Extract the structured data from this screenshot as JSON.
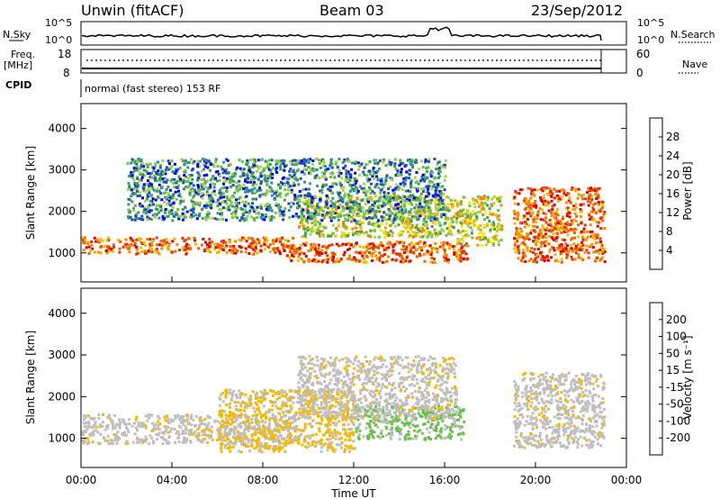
{
  "header": {
    "site": "Unwin (fitACF)",
    "beam": "Beam 03",
    "date": "23/Sep/2012"
  },
  "top_panels": {
    "nsky_label": "N.Sky",
    "nsky_ticks": [
      "10^5",
      "10^0"
    ],
    "nsearch_label": "N.Search",
    "freq_label_1": "Freq.",
    "freq_label_2": "[MHz]",
    "freq_ticks": [
      "18",
      "8"
    ],
    "nave_ticks": [
      "60",
      "0"
    ],
    "nave_label": "Nave",
    "cpid_label": "CPID",
    "cpid_text": "normal (fast stereo) 153 RF"
  },
  "chart_data": [
    {
      "type": "heatmap",
      "panel": "power",
      "ylabel": "Slant Range [km]",
      "y_ticks": [
        "1000",
        "2000",
        "3000",
        "4000"
      ],
      "y_tick_values": [
        1000,
        2000,
        3000,
        4000
      ],
      "ylim": [
        300,
        4600
      ],
      "xlim": [
        0,
        24
      ],
      "colorbar": {
        "label": "Power [dB]",
        "tick_labels": [
          "4",
          "8",
          "12",
          "16",
          "20",
          "24",
          "28"
        ],
        "colors": [
          "#0000ff",
          "#1f4fbf",
          "#2e8f8f",
          "#3fa05a",
          "#6cc04a",
          "#a6d24a",
          "#f2e800",
          "#f5b800",
          "#f58c00",
          "#f06000",
          "#e83000",
          "#e00000"
        ]
      },
      "bands": [
        {
          "t0": 0.0,
          "t1": 9.5,
          "r0": 1000,
          "r1": 1400,
          "level": "high"
        },
        {
          "t0": 9.5,
          "t1": 16.5,
          "r0": 1400,
          "r1": 2400,
          "level": "medium"
        },
        {
          "t0": 9.0,
          "t1": 17.0,
          "r0": 800,
          "r1": 1300,
          "level": "high"
        },
        {
          "t0": 2.0,
          "t1": 16.0,
          "r0": 1800,
          "r1": 3300,
          "level": "low"
        },
        {
          "t0": 16.5,
          "t1": 18.5,
          "r0": 1200,
          "r1": 2400,
          "level": "medium"
        },
        {
          "t0": 19.0,
          "t1": 23.0,
          "r0": 800,
          "r1": 2600,
          "level": "high"
        }
      ]
    },
    {
      "type": "heatmap",
      "panel": "velocity",
      "ylabel": "Slant Range [km]",
      "y_ticks": [
        "1000",
        "2000",
        "3000",
        "4000"
      ],
      "y_tick_values": [
        1000,
        2000,
        3000,
        4000
      ],
      "ylim": [
        300,
        4600
      ],
      "xlim": [
        0,
        24
      ],
      "xlabel": "Time UT",
      "x_ticks": [
        "00:00",
        "04:00",
        "08:00",
        "12:00",
        "16:00",
        "20:00",
        "00:00"
      ],
      "x_tick_values": [
        0,
        4,
        8,
        12,
        16,
        20,
        24
      ],
      "colorbar": {
        "label": "Velocity [m s⁻¹]",
        "tick_labels": [
          "-200",
          "-100",
          "-50",
          "-15",
          "15",
          "50",
          "100",
          "200"
        ],
        "colors": [
          "#e00000",
          "#f04000",
          "#f58c00",
          "#f5b800",
          "#bebebe",
          "#c8c8c8",
          "#6cc04a",
          "#3fa05a",
          "#1f4fbf",
          "#0000c0"
        ]
      },
      "bands": [
        {
          "t0": 0.0,
          "t1": 9.5,
          "r0": 900,
          "r1": 1600,
          "level": "gray"
        },
        {
          "t0": 6.0,
          "t1": 12.0,
          "r0": 700,
          "r1": 2200,
          "level": "orange"
        },
        {
          "t0": 12.0,
          "t1": 16.8,
          "r0": 1000,
          "r1": 1800,
          "level": "green"
        },
        {
          "t0": 9.5,
          "t1": 16.5,
          "r0": 1500,
          "r1": 3000,
          "level": "gray"
        },
        {
          "t0": 19.0,
          "t1": 23.0,
          "r0": 800,
          "r1": 2600,
          "level": "gray"
        }
      ]
    }
  ]
}
